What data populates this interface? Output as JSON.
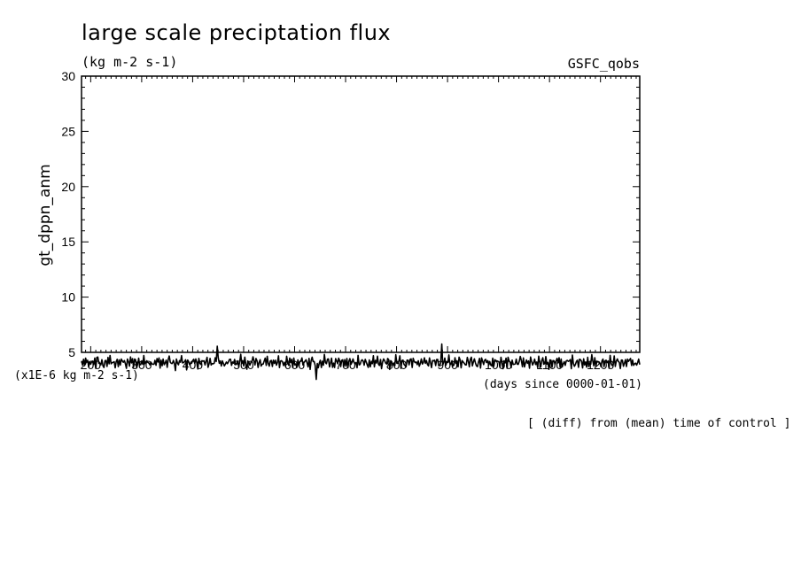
{
  "chart_data": {
    "type": "line",
    "title": "large scale preciptation flux",
    "units": "(kg m-2 s-1)",
    "dataset": "GSFC_qobs",
    "ylabel": "gt_dppn_anm",
    "xlabel": "(days since 0000-01-01)",
    "series_units": "(x1E-6 kg m-2 s-1)",
    "note": "[ (diff) from (mean) time of control ]",
    "xlim": [
      182,
      1277
    ],
    "ylim": [
      5,
      30
    ],
    "x_ticks": [
      "200",
      "300",
      "400",
      "500",
      "600",
      "700",
      "800",
      "900",
      "1000",
      "1100",
      "1200"
    ],
    "y_ticks": [
      "30",
      "25",
      "20",
      "15",
      "10",
      "5"
    ],
    "grid": false,
    "series": [
      {
        "x_start": 182,
        "x_end": 1277,
        "count": 548,
        "y_baseline": 4.05,
        "y_amplitude": 0.45,
        "values": [
          0.1,
          -0.8,
          0.4,
          -0.3,
          0.5,
          -0.2,
          0.9,
          -0.6,
          0.2,
          -0.4,
          1.3,
          0.3,
          -0.5,
          0.7,
          -0.9,
          0.6,
          1.1,
          -0.2,
          0.4,
          -0.7,
          0.8,
          0.1,
          -1.0,
          0.5,
          0.2,
          -0.3,
          0.6,
          -0.6,
          1.5,
          0.3,
          -0.4,
          0.2,
          0.9,
          -0.8,
          0.3,
          0.7,
          -0.3,
          0.2,
          -0.9,
          0.4,
          1.0,
          -0.5,
          0.6,
          0.1,
          -0.7,
          0.8,
          0.3,
          -0.2,
          1.2,
          -0.4,
          0.5,
          -0.6,
          0.2,
          0.7,
          -1.1,
          0.4,
          0.9,
          -0.3,
          0.1,
          0.6,
          -0.8,
          1.4,
          0.2,
          -0.5,
          0.3,
          -0.1,
          0.8,
          -0.9,
          0.5,
          0.2
        ]
      }
    ]
  }
}
